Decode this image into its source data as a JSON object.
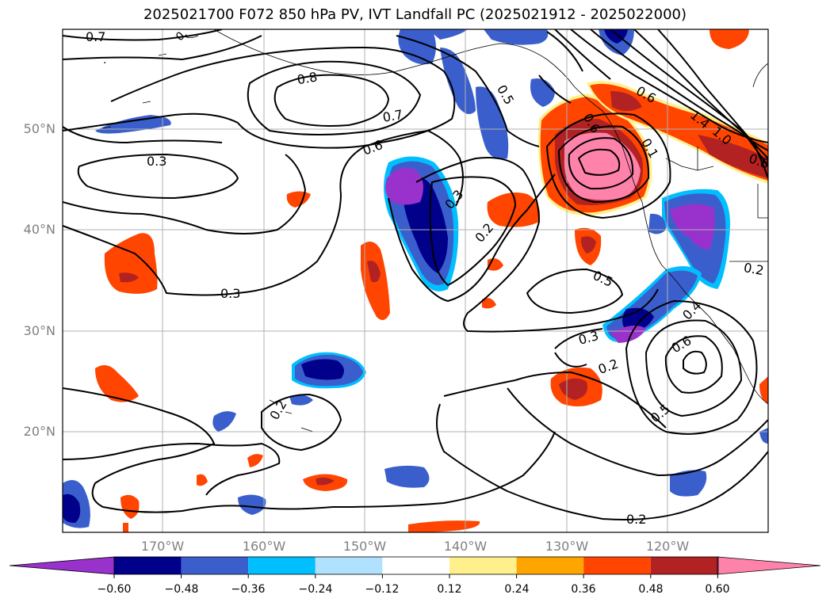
{
  "title": "2025021700 F072 850 hPa PV, IVT Landfall PC (2025021912 - 2025022000)",
  "lat_labels": [
    "50°N",
    "40°N",
    "30°N",
    "20°N"
  ],
  "lon_labels": [
    "170°W",
    "160°W",
    "150°W",
    "140°W",
    "130°W",
    "120°W"
  ],
  "contour_labels": [
    "0.7",
    "0.8",
    "0.5",
    "0.6",
    "0.7",
    "0.6",
    "0.3",
    "0.3",
    "0.2",
    "0.5",
    "0.3",
    "0.2",
    "0.6",
    "0.5",
    "0.2",
    "0.3",
    "0.2",
    "0.2",
    "0.4",
    "0.6",
    "0.8",
    "0.1",
    "1.4",
    "1.0"
  ],
  "colorbar": {
    "ticks": [
      "−0.60",
      "−0.48",
      "−0.36",
      "−0.24",
      "−0.12",
      "0.12",
      "0.24",
      "0.36",
      "0.48",
      "0.60"
    ],
    "colors": {
      "under": "#9932cc",
      "bins": [
        "#9932cc",
        "#00008b",
        "#3a5fcd",
        "#00bfff",
        "#b0e2ff",
        "#ffffff",
        "#fff08c",
        "#ffa500",
        "#ff4500",
        "#b22222",
        "#ff82ab"
      ],
      "over": "#ff82ab"
    }
  },
  "colors": {
    "neg_dark": "#00008b",
    "neg_mid": "#3a5fcd",
    "neg_light": "#00bfff",
    "neg_purple": "#9932cc",
    "pos_orange": "#ff4500",
    "pos_red": "#b22222",
    "pos_pink": "#ff82ab",
    "pos_yellow": "#fff08c",
    "grid": "#b0b0b0"
  }
}
